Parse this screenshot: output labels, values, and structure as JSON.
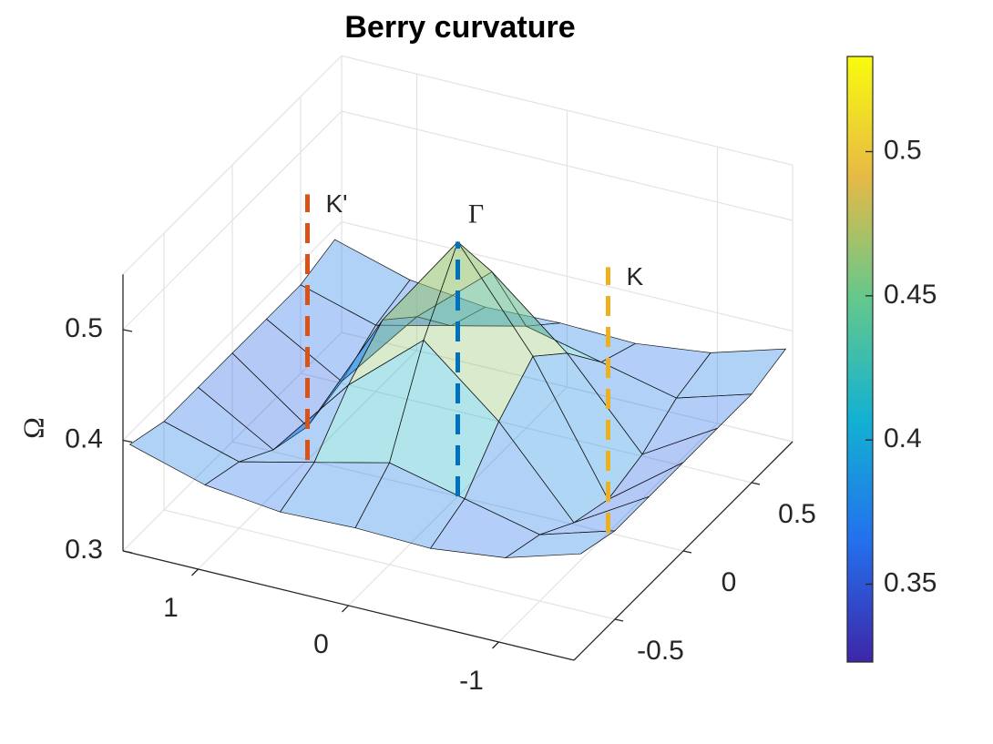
{
  "chart_data": {
    "type": "surface",
    "title": "Berry curvature",
    "zlabel": "Ω",
    "x": [
      -1.5,
      -1,
      -0.5,
      0,
      0.5,
      1,
      1.5
    ],
    "y": [
      -0.75,
      -0.5,
      -0.25,
      0,
      0.25,
      0.5,
      0.75
    ],
    "z": [
      [
        0.39,
        0.37,
        0.362,
        0.364,
        0.362,
        0.37,
        0.39
      ],
      [
        0.38,
        0.36,
        0.376,
        0.392,
        0.376,
        0.36,
        0.38
      ],
      [
        0.38,
        0.34,
        0.415,
        0.472,
        0.415,
        0.34,
        0.38
      ],
      [
        0.38,
        0.33,
        0.443,
        0.53,
        0.443,
        0.33,
        0.38
      ],
      [
        0.38,
        0.34,
        0.415,
        0.472,
        0.415,
        0.34,
        0.38
      ],
      [
        0.38,
        0.36,
        0.376,
        0.392,
        0.376,
        0.36,
        0.38
      ],
      [
        0.39,
        0.37,
        0.362,
        0.364,
        0.362,
        0.37,
        0.39
      ]
    ],
    "xlim": [
      -1.5,
      1.5
    ],
    "ylim": [
      -0.8,
      0.8
    ],
    "zlim": [
      0.3,
      0.55
    ],
    "xticks": [
      -1,
      0,
      1
    ],
    "yticks": [
      -0.5,
      0,
      0.5
    ],
    "zticks": [
      0.3,
      0.4,
      0.5
    ],
    "clim": [
      0.323,
      0.533
    ],
    "colorbar_ticks": [
      0.35,
      0.4,
      0.45,
      0.5
    ],
    "grid": true,
    "markers": [
      {
        "label": "K'",
        "x": 1,
        "y": 0,
        "z": [
          0.3,
          0.54
        ],
        "color": "#d95319"
      },
      {
        "label": "Γ",
        "x": 0,
        "y": 0,
        "z": [
          0.3,
          0.53
        ],
        "color": "#0072bd"
      },
      {
        "label": "K",
        "x": -1,
        "y": 0,
        "z": [
          0.3,
          0.54
        ],
        "color": "#edb120"
      }
    ]
  }
}
